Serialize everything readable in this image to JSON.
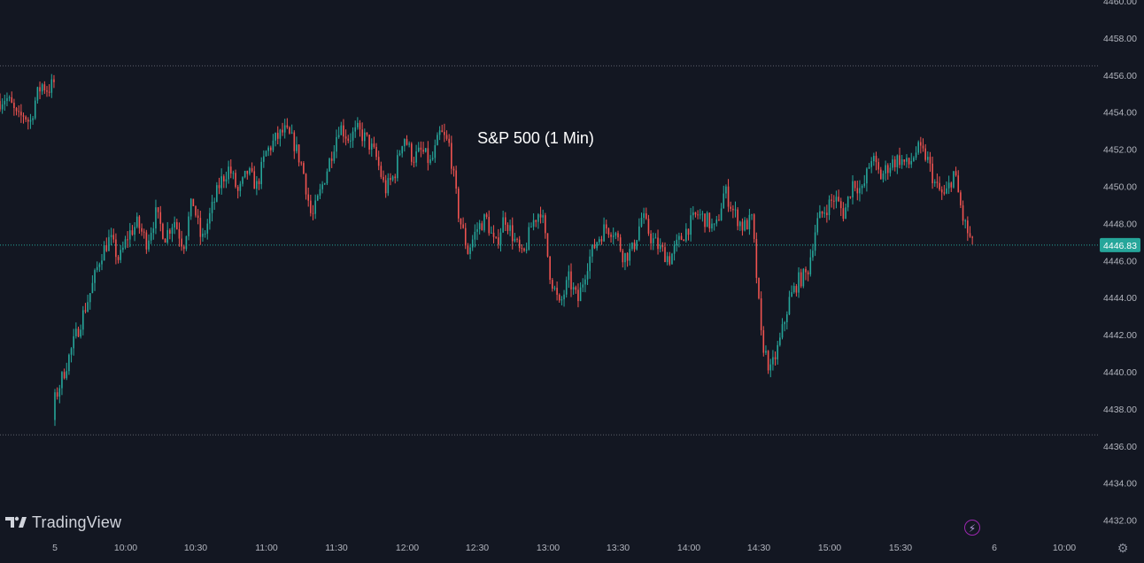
{
  "chart_data": {
    "type": "candlestick",
    "title": "S&P 500 (1 Min)",
    "ylim": [
      4431,
      4460
    ],
    "y_ticks": [
      "4460.00",
      "4458.00",
      "4456.00",
      "4454.00",
      "4452.00",
      "4450.00",
      "4448.00",
      "4446.00",
      "4444.00",
      "4442.00",
      "4440.00",
      "4438.00",
      "4436.00",
      "4434.00",
      "4432.00"
    ],
    "x_ticks": [
      "5",
      "10:00",
      "10:30",
      "11:00",
      "11:30",
      "12:00",
      "12:30",
      "13:00",
      "13:30",
      "14:00",
      "14:30",
      "15:00",
      "15:30",
      "6",
      "10:00"
    ],
    "last_price": "4446.83",
    "last_price_value": 4446.83,
    "reference_lines": [
      4456.5,
      4436.6
    ],
    "colors": {
      "background": "#131722",
      "up": "#26a69a",
      "down": "#ef5350",
      "axis_text": "#b2b5be"
    },
    "series": [
      {
        "session": "prev",
        "close": [
          4454.6,
          4454.8,
          4454.3,
          4453.6,
          4453.9,
          4453.4,
          4454.8,
          4455.5,
          4455.2,
          4455.6
        ]
      },
      {
        "session": "day",
        "close": [
          4438.5,
          4440.0,
          4441.5,
          4443.0,
          4444.5,
          4446.3,
          4447.2,
          4446.0,
          4447.4,
          4448.0,
          4447.0,
          4448.5,
          4447.3,
          4448.2,
          4446.8,
          4449.3,
          4447.0,
          4448.6,
          4450.2,
          4451.0,
          4449.6,
          4450.8,
          4450.0,
          4451.8,
          4452.5,
          4453.0,
          4452.4,
          4451.0,
          4448.2,
          4449.8,
          4451.5,
          4453.3,
          4452.6,
          4453.0,
          4452.5,
          4451.6,
          4449.8,
          4450.6,
          4452.8,
          4451.5,
          4451.9,
          4451.2,
          4452.9,
          4452.2,
          4448.5,
          4446.5,
          4447.7,
          4448.3,
          4446.7,
          4448.4,
          4447.2,
          4446.1,
          4448.0,
          4448.8,
          4445.2,
          4443.5,
          4445.0,
          4443.8,
          4445.8,
          4447.0,
          4447.8,
          4447.6,
          4446.2,
          4446.6,
          4448.4,
          4447.2,
          4446.6,
          4446.1,
          4447.0,
          4447.8,
          4448.5,
          4448.2,
          4447.6,
          4449.8,
          4448.6,
          4447.8,
          4448.2,
          4441.8,
          4440.0,
          4441.6,
          4443.8,
          4444.9,
          4445.3,
          4448.0,
          4448.8,
          4449.4,
          4448.5,
          4450.3,
          4449.7,
          4451.6,
          4450.5,
          4451.2,
          4451.5,
          4451.1,
          4452.0,
          4451.6,
          4450.0,
          4449.4,
          4450.8,
          4448.2,
          4446.8
        ]
      }
    ]
  },
  "watermark": {
    "brand": "TradingView"
  }
}
